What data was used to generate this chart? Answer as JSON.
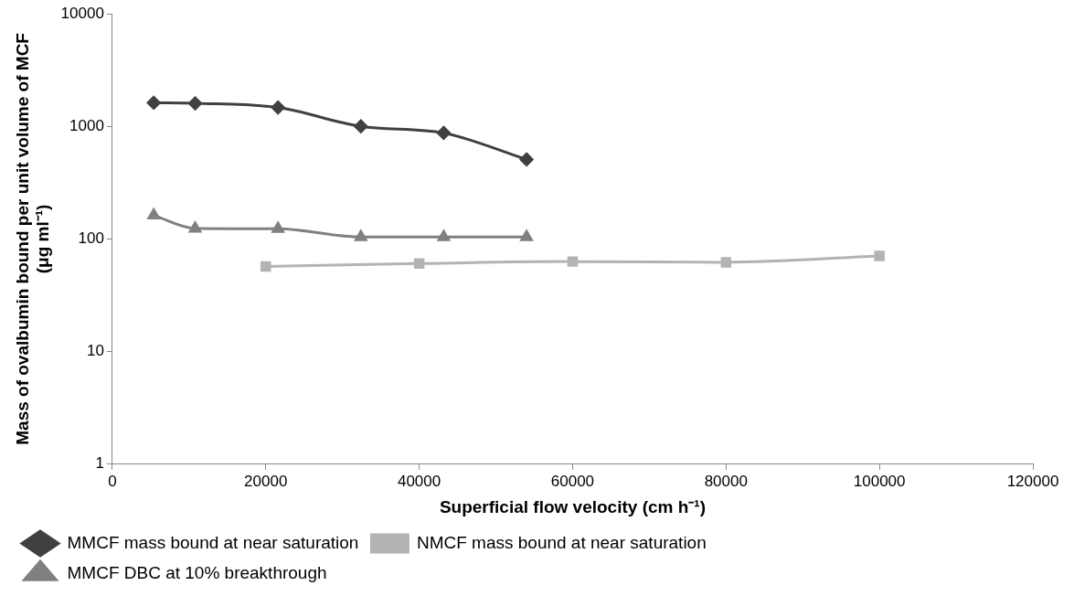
{
  "chart_data": {
    "type": "line",
    "xlabel": "Superficial flow velocity (cm h⁻¹)",
    "ylabel": "Mass of ovalbumin bound per unit volume of MCF (μg ml⁻¹)",
    "xlim": [
      0,
      120000
    ],
    "xticks": [
      0,
      20000,
      40000,
      60000,
      80000,
      100000,
      120000
    ],
    "ylim": [
      1,
      10000
    ],
    "yticks": [
      1,
      10,
      100,
      1000,
      10000
    ],
    "log": "y",
    "grid": false,
    "legend": "bottom",
    "series": [
      {
        "name": "MMCF mass bound at near saturation",
        "color": "#404040",
        "marker": "diamond",
        "x": [
          5400,
          10800,
          21600,
          32400,
          43200,
          54000
        ],
        "values": [
          1620,
          1600,
          1470,
          1000,
          873,
          508
        ]
      },
      {
        "name": "NMCF mass bound at near saturation",
        "color": "#b3b3b3",
        "marker": "square",
        "x": [
          20000,
          40000,
          60000,
          80000,
          100000
        ],
        "values": [
          57,
          60.5,
          63,
          62,
          70.6
        ]
      },
      {
        "name": "MMCF DBC at 10% breakthrough",
        "color": "#808080",
        "marker": "triangle",
        "x": [
          5400,
          10800,
          21600,
          32400,
          43200,
          54000
        ],
        "values": [
          162,
          124,
          123,
          104,
          104,
          104
        ]
      }
    ]
  }
}
